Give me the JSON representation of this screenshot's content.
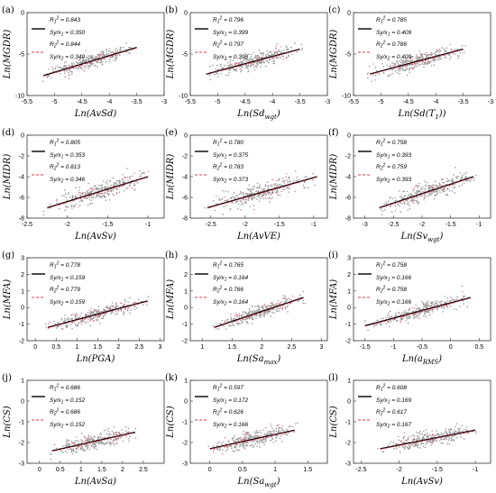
{
  "chart_data": [
    {
      "panel": "(a)",
      "type": "scatter",
      "xlabel": "Ln(AvSd)",
      "xsub": "",
      "xsuffix": "",
      "ylabel": "Ln(MGDR)",
      "xlim": [
        -5.5,
        -3
      ],
      "ylim": [
        -10,
        0
      ],
      "xticks": [
        -5.5,
        -5,
        -4.5,
        -4,
        -3.5,
        -3
      ],
      "yticks": [
        -10,
        -5,
        0
      ],
      "legend": {
        "r1": "0.843",
        "s1": "0.350",
        "r2": "0.844",
        "s2": "0.349"
      },
      "fit": {
        "x": [
          -5.2,
          -3.5
        ],
        "y": [
          -7.6,
          -4.2
        ]
      },
      "cloud": {
        "x0": -5.2,
        "x1": -3.5,
        "spread": 0.7
      }
    },
    {
      "panel": "(b)",
      "type": "scatter",
      "xlabel": "Ln(Sd",
      "xsub": "wgt",
      "xsuffix": ")",
      "ylabel": "Ln(MGDR)",
      "xlim": [
        -5.5,
        -3
      ],
      "ylim": [
        -10,
        0
      ],
      "xticks": [
        -5.5,
        -5,
        -4.5,
        -4,
        -3.5,
        -3
      ],
      "yticks": [
        -10,
        -5,
        0
      ],
      "legend": {
        "r1": "0.796",
        "s1": "0.399",
        "r2": "0.797",
        "s2": "0.398"
      },
      "fit": {
        "x": [
          -5.2,
          -3.5
        ],
        "y": [
          -7.4,
          -4.4
        ]
      },
      "cloud": {
        "x0": -5.2,
        "x1": -3.5,
        "spread": 0.8
      }
    },
    {
      "panel": "(c)",
      "type": "scatter",
      "xlabel": "Ln(Sd(T",
      "xsub": "1",
      "xsuffix": "))",
      "ylabel": "Ln(MGDR)",
      "xlim": [
        -5.5,
        -3
      ],
      "ylim": [
        -10,
        0
      ],
      "xticks": [
        -5.5,
        -5,
        -4.5,
        -4,
        -3.5,
        -3
      ],
      "yticks": [
        -10,
        -5,
        0
      ],
      "legend": {
        "r1": "0.785",
        "s1": "0.409",
        "r2": "0.786",
        "s2": "0.409"
      },
      "fit": {
        "x": [
          -5.2,
          -3.5
        ],
        "y": [
          -7.4,
          -4.4
        ]
      },
      "cloud": {
        "x0": -5.2,
        "x1": -3.5,
        "spread": 0.8
      }
    },
    {
      "panel": "(d)",
      "type": "scatter",
      "xlabel": "Ln(AvSv)",
      "xsub": "",
      "xsuffix": "",
      "ylabel": "Ln(MIDR)",
      "xlim": [
        -2.5,
        -0.8
      ],
      "ylim": [
        -8,
        0
      ],
      "xticks": [
        -2.5,
        -2,
        -1.5,
        -1
      ],
      "yticks": [
        -8,
        -6,
        -4,
        -2,
        0
      ],
      "legend": {
        "r1": "0.805",
        "s1": "0.353",
        "r2": "0.813",
        "s2": "0.346"
      },
      "fit": {
        "x": [
          -2.25,
          -1.0
        ],
        "y": [
          -7.0,
          -4.0
        ]
      },
      "cloud": {
        "x0": -2.25,
        "x1": -1.0,
        "spread": 0.75
      }
    },
    {
      "panel": "(e)",
      "type": "scatter",
      "xlabel": "Ln(AvVE)",
      "xsub": "",
      "xsuffix": "",
      "ylabel": "Ln(MIDR)",
      "xlim": [
        -2.8,
        -0.8
      ],
      "ylim": [
        -8,
        0
      ],
      "xticks": [
        -2.5,
        -2,
        -1.5,
        -1
      ],
      "yticks": [
        -8,
        -6,
        -4,
        -2,
        0
      ],
      "legend": {
        "r1": "0.780",
        "s1": "0.375",
        "r2": "0.783",
        "s2": "0.373"
      },
      "fit": {
        "x": [
          -2.55,
          -0.95
        ],
        "y": [
          -7.0,
          -4.0
        ]
      },
      "cloud": {
        "x0": -2.55,
        "x1": -0.95,
        "spread": 0.8
      }
    },
    {
      "panel": "(f)",
      "type": "scatter",
      "xlabel": "Ln(Sv",
      "xsub": "wgt",
      "xsuffix": ")",
      "ylabel": "Ln(MIDR)",
      "xlim": [
        -3.2,
        -0.8
      ],
      "ylim": [
        -8,
        0
      ],
      "xticks": [
        -3,
        -2.5,
        -2,
        -1.5,
        -1
      ],
      "yticks": [
        -8,
        -6,
        -4,
        -2,
        0
      ],
      "legend": {
        "r1": "0.758",
        "s1": "0.393",
        "r2": "0.759",
        "s2": "0.393"
      },
      "fit": {
        "x": [
          -2.75,
          -1.1
        ],
        "y": [
          -7.0,
          -4.0
        ]
      },
      "cloud": {
        "x0": -2.75,
        "x1": -1.1,
        "spread": 0.8
      }
    },
    {
      "panel": "(g)",
      "type": "scatter",
      "xlabel": "Ln(PGA)",
      "xsub": "",
      "xsuffix": "",
      "ylabel": "Ln(MFA)",
      "xlim": [
        -0.2,
        3.1
      ],
      "ylim": [
        -2,
        3
      ],
      "xticks": [
        0,
        0.5,
        1,
        1.5,
        2,
        2.5,
        3
      ],
      "yticks": [
        -2,
        -1,
        0,
        1,
        2,
        3
      ],
      "legend": {
        "r1": "0.778",
        "s1": "0.159",
        "r2": "0.779",
        "s2": "0.159"
      },
      "fit": {
        "x": [
          0.3,
          2.7
        ],
        "y": [
          -1.2,
          0.4
        ]
      },
      "cloud": {
        "x0": 0.3,
        "x1": 2.7,
        "spread": 0.35
      }
    },
    {
      "panel": "(h)",
      "type": "scatter",
      "xlabel": "Ln(Sa",
      "xsub": "max",
      "xsuffix": ")",
      "ylabel": "Ln(MFA)",
      "xlim": [
        0.8,
        3.1
      ],
      "ylim": [
        -2,
        3
      ],
      "xticks": [
        1,
        1.5,
        2,
        2.5,
        3
      ],
      "yticks": [
        -2,
        -1,
        0,
        1,
        2,
        3
      ],
      "legend": {
        "r1": "0.765",
        "s1": "0.164",
        "r2": "0.766",
        "s2": "0.164"
      },
      "fit": {
        "x": [
          1.2,
          2.7
        ],
        "y": [
          -1.2,
          0.6
        ]
      },
      "cloud": {
        "x0": 1.2,
        "x1": 2.7,
        "spread": 0.35
      }
    },
    {
      "panel": "(i)",
      "type": "scatter",
      "xlabel": "Ln(a",
      "xsub": "RMS",
      "xsuffix": ")",
      "ylabel": "Ln(MFA)",
      "xlim": [
        -1.7,
        0.7
      ],
      "ylim": [
        -2,
        3
      ],
      "xticks": [
        -1.5,
        -1,
        -0.5,
        0,
        0.5
      ],
      "yticks": [
        -2,
        -1,
        0,
        1,
        2,
        3
      ],
      "legend": {
        "r1": "0.758",
        "s1": "0.166",
        "r2": "0.758",
        "s2": "0.166"
      },
      "fit": {
        "x": [
          -1.5,
          0.35
        ],
        "y": [
          -1.1,
          0.6
        ]
      },
      "cloud": {
        "x0": -1.5,
        "x1": 0.35,
        "spread": 0.35
      }
    },
    {
      "panel": "(j)",
      "type": "scatter",
      "xlabel": "Ln(AvSa)",
      "xsub": "",
      "xsuffix": "",
      "ylabel": "Ln(CS)",
      "xlim": [
        -0.3,
        3.0
      ],
      "ylim": [
        -3,
        1
      ],
      "xticks": [
        0,
        0.5,
        1,
        1.5,
        2,
        2.5
      ],
      "yticks": [
        -3,
        -2,
        -1,
        0,
        1
      ],
      "legend": {
        "r1": "0.686",
        "s1": "0.152",
        "r2": "0.686",
        "s2": "0.152"
      },
      "fit": {
        "x": [
          0.3,
          2.3
        ],
        "y": [
          -2.4,
          -1.5
        ]
      },
      "cloud": {
        "x0": 0.3,
        "x1": 2.3,
        "spread": 0.35
      }
    },
    {
      "panel": "(k)",
      "type": "scatter",
      "xlabel": "Ln(Sa",
      "xsub": "wgt",
      "xsuffix": ")",
      "ylabel": "Ln(CS)",
      "xlim": [
        -0.3,
        1.8
      ],
      "ylim": [
        -3,
        1
      ],
      "xticks": [
        0,
        0.5,
        1,
        1.5
      ],
      "yticks": [
        -3,
        -2,
        -1,
        0,
        1
      ],
      "legend": {
        "r1": "0.597",
        "s1": "0.172",
        "r2": "0.626",
        "s2": "0.166"
      },
      "fit": {
        "x": [
          0.0,
          1.3
        ],
        "y": [
          -2.3,
          -1.4
        ]
      },
      "cloud": {
        "x0": 0.0,
        "x1": 1.3,
        "spread": 0.35
      }
    },
    {
      "panel": "(l)",
      "type": "scatter",
      "xlabel": "Ln(AvSv)",
      "xsub": "",
      "xsuffix": "",
      "ylabel": "Ln(CS)",
      "xlim": [
        -2.6,
        -0.8
      ],
      "ylim": [
        -3,
        1
      ],
      "xticks": [
        -2.5,
        -2,
        -1.5,
        -1
      ],
      "yticks": [
        -3,
        -2,
        -1,
        0,
        1
      ],
      "legend": {
        "r1": "0.608",
        "s1": "0.169",
        "r2": "0.617",
        "s2": "0.167"
      },
      "fit": {
        "x": [
          -2.25,
          -1.0
        ],
        "y": [
          -2.3,
          -1.4
        ]
      },
      "cloud": {
        "x0": -2.25,
        "x1": -1.0,
        "spread": 0.35
      }
    }
  ],
  "colors": {
    "fit1": "#000000",
    "fit2": "#e8344f",
    "points": "#9a9a9a",
    "points_red": "#d24b6a"
  }
}
